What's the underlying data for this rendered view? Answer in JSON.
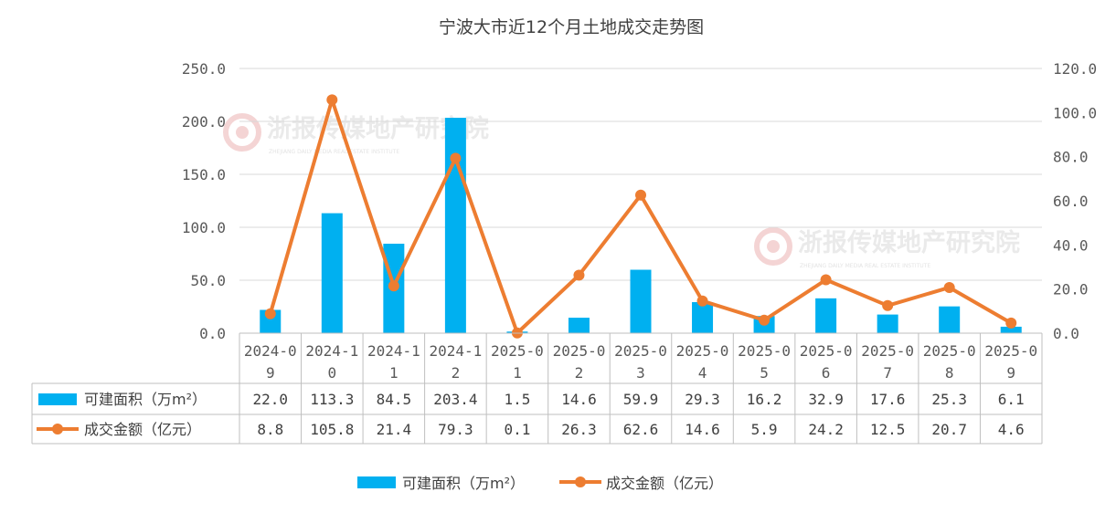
{
  "chart_data": {
    "type": "bar",
    "title": "宁波大市近12个月土地成交走势图",
    "categories": [
      [
        "2024-0",
        "9"
      ],
      [
        "2024-1",
        "0"
      ],
      [
        "2024-1",
        "1"
      ],
      [
        "2024-1",
        "2"
      ],
      [
        "2025-0",
        "1"
      ],
      [
        "2025-0",
        "2"
      ],
      [
        "2025-0",
        "3"
      ],
      [
        "2025-0",
        "4"
      ],
      [
        "2025-0",
        "5"
      ],
      [
        "2025-0",
        "6"
      ],
      [
        "2025-0",
        "7"
      ],
      [
        "2025-0",
        "8"
      ],
      [
        "2025-0",
        "9"
      ]
    ],
    "series": [
      {
        "name": "可建面积（万m²）",
        "type": "bar",
        "axis": "left",
        "color": "#00b0f0",
        "values": [
          22.0,
          113.3,
          84.5,
          203.4,
          1.5,
          14.6,
          59.9,
          29.3,
          16.2,
          32.9,
          17.6,
          25.3,
          6.1
        ],
        "labels": [
          "22.0",
          "113.3",
          "84.5",
          "203.4",
          "1.5",
          "14.6",
          "59.9",
          "29.3",
          "16.2",
          "32.9",
          "17.6",
          "25.3",
          "6.1"
        ]
      },
      {
        "name": "成交金额（亿元）",
        "type": "line",
        "axis": "right",
        "color": "#ed7d31",
        "values": [
          8.8,
          105.8,
          21.4,
          79.3,
          0.1,
          26.3,
          62.6,
          14.6,
          5.9,
          24.2,
          12.5,
          20.7,
          4.6
        ],
        "labels": [
          "8.8",
          "105.8",
          "21.4",
          "79.3",
          "0.1",
          "26.3",
          "62.6",
          "14.6",
          "5.9",
          "24.2",
          "12.5",
          "20.7",
          "4.6"
        ]
      }
    ],
    "y_left": {
      "ylim": [
        0,
        250
      ],
      "ticks": [
        0,
        50,
        100,
        150,
        200,
        250
      ],
      "tick_labels": [
        "0.0",
        "50.0",
        "100.0",
        "150.0",
        "200.0",
        "250.0"
      ]
    },
    "y_right": {
      "ylim": [
        0,
        120
      ],
      "ticks": [
        0,
        20,
        40,
        60,
        80,
        100,
        120
      ],
      "tick_labels": [
        "0.0",
        "20.0",
        "40.0",
        "60.0",
        "80.0",
        "100.0",
        "120.0"
      ]
    },
    "grid": true,
    "data_table": true,
    "legend": "bottom"
  },
  "watermark": {
    "text": "浙报传媒地产研究院",
    "subtext": "ZHEJIANG DAILY MEDIA REAL ESTATE INSTITUTE"
  }
}
